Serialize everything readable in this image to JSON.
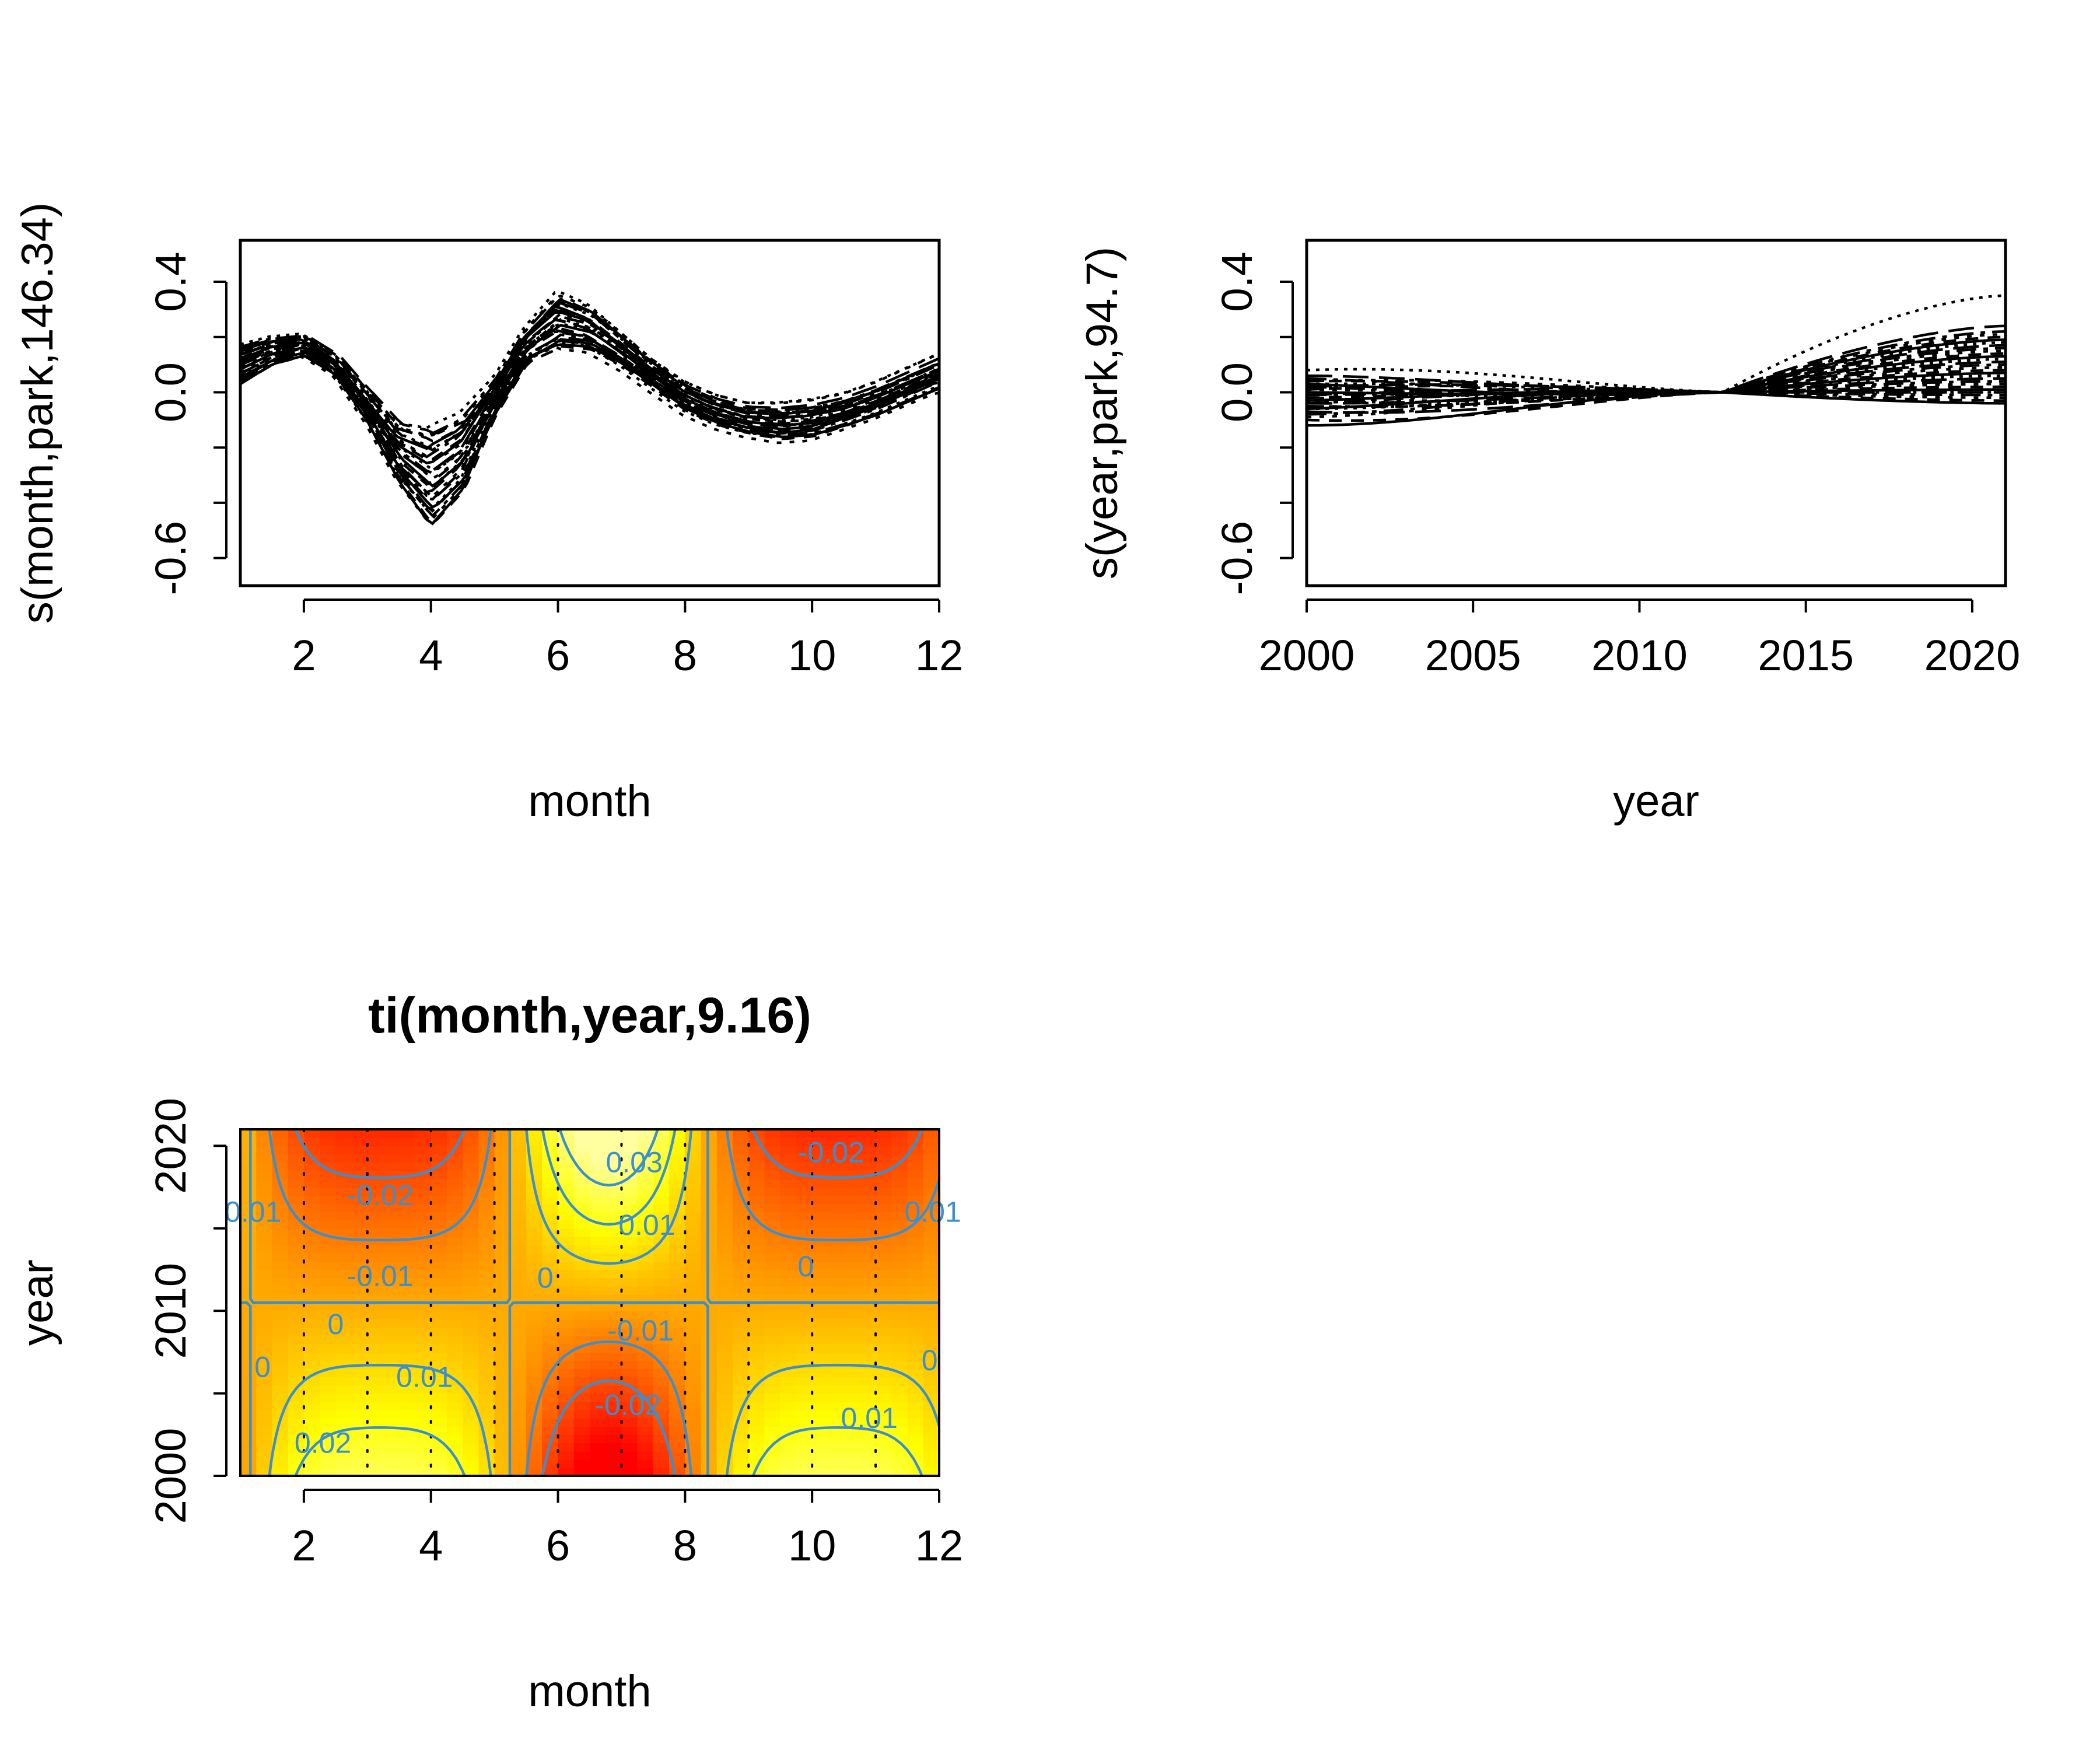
{
  "colors": {
    "axis": "#000000",
    "smooth_lines": "#000000",
    "contour": "#3a8fd0",
    "heat_low": "#ff0000",
    "heat_high": "#ffffa0",
    "grid_dots": "#000000"
  },
  "chart_data": [
    {
      "id": "month-smooth",
      "type": "line",
      "title": "",
      "xlabel": "month",
      "ylabel": "s(month,park,146.34)",
      "xlim": [
        1,
        12
      ],
      "ylim": [
        -0.7,
        0.55
      ],
      "xticks": [
        2,
        4,
        6,
        8,
        10,
        12
      ],
      "yticks": [
        -0.6,
        -0.4,
        -0.2,
        0.0,
        0.2,
        0.4
      ],
      "ytick_labels": [
        "-0.6",
        "",
        "",
        "0.0",
        "",
        "0.4"
      ],
      "series_count": 30,
      "mean_curve": {
        "x": [
          1,
          1.5,
          2,
          2.5,
          3,
          3.5,
          4,
          4.5,
          5,
          5.5,
          6,
          6.5,
          7,
          7.5,
          8,
          8.5,
          9,
          9.5,
          10,
          10.5,
          11,
          11.5,
          12
        ],
        "y": [
          0.1,
          0.15,
          0.17,
          0.1,
          -0.05,
          -0.22,
          -0.31,
          -0.22,
          -0.02,
          0.17,
          0.26,
          0.23,
          0.15,
          0.06,
          -0.02,
          -0.07,
          -0.1,
          -0.11,
          -0.1,
          -0.07,
          -0.03,
          0.02,
          0.07
        ]
      },
      "curve_spread": {
        "x": [
          1,
          1.5,
          2,
          2.5,
          3,
          3.5,
          4,
          4.5,
          5,
          5.5,
          6,
          6.5,
          7,
          7.5,
          8,
          8.5,
          9,
          9.5,
          10,
          10.5,
          11,
          11.5,
          12
        ],
        "y": [
          0.07,
          0.05,
          0.04,
          0.04,
          0.06,
          0.11,
          0.18,
          0.14,
          0.06,
          0.06,
          0.1,
          0.08,
          0.06,
          0.05,
          0.05,
          0.05,
          0.05,
          0.06,
          0.06,
          0.05,
          0.05,
          0.05,
          0.05
        ]
      },
      "legend": "none",
      "grid": false
    },
    {
      "id": "year-smooth",
      "type": "line",
      "title": "",
      "xlabel": "year",
      "ylabel": "s(year,park,94.7)",
      "xlim": [
        2000,
        2021
      ],
      "ylim": [
        -0.7,
        0.55
      ],
      "xticks": [
        2000,
        2005,
        2010,
        2015,
        2020
      ],
      "yticks": [
        -0.6,
        -0.4,
        -0.2,
        0.0,
        0.2,
        0.4
      ],
      "ytick_labels": [
        "-0.6",
        "",
        "",
        "0.0",
        "",
        "0.4"
      ],
      "series_count": 30,
      "curve_family": {
        "pivot_year": 2012.5,
        "start_values_2000": [
          -0.12,
          -0.1,
          -0.09,
          -0.08,
          -0.07,
          -0.06,
          -0.06,
          -0.05,
          -0.05,
          -0.04,
          -0.04,
          -0.03,
          -0.03,
          -0.02,
          -0.02,
          -0.01,
          -0.01,
          0.0,
          0.0,
          0.01,
          0.01,
          0.02,
          0.02,
          0.03,
          0.03,
          0.04,
          0.04,
          0.05,
          0.06,
          0.08
        ],
        "end_values_2021": [
          -0.04,
          -0.03,
          -0.02,
          -0.01,
          0.0,
          0.0,
          0.01,
          0.02,
          0.03,
          0.04,
          0.05,
          0.06,
          0.07,
          0.08,
          0.09,
          0.1,
          0.11,
          0.12,
          0.13,
          0.14,
          0.15,
          0.16,
          0.17,
          0.18,
          0.19,
          0.2,
          0.21,
          0.22,
          0.24,
          0.35
        ]
      },
      "legend": "none",
      "grid": false
    },
    {
      "id": "month-year-interaction",
      "type": "heatmap",
      "title": "ti(month,year,9.16)",
      "xlabel": "month",
      "ylabel": "year",
      "xlim": [
        1,
        12
      ],
      "ylim": [
        2000,
        2021
      ],
      "xticks": [
        2,
        4,
        6,
        8,
        10,
        12
      ],
      "yticks": [
        2000,
        2005,
        2010,
        2015,
        2020
      ],
      "ytick_labels": [
        "2000",
        "",
        "2010",
        "",
        "2020"
      ],
      "surface": {
        "month_pattern": "cos(2*pi*(month-3.2)/7.2) - 0.23*cos(2*pi*(month-3.2)/3.6)",
        "year_pattern": "(year-2010.5)/10.5",
        "scale": -0.036
      },
      "contour_levels": [
        -0.02,
        -0.01,
        0,
        0.01,
        0.02,
        0.03
      ],
      "contour_labels": [
        {
          "text": "-0.02",
          "x": 3.2,
          "y": 2017
        },
        {
          "text": "-0.01",
          "x": 3.2,
          "y": 2012.1
        },
        {
          "text": "0",
          "x": 2.5,
          "y": 2009.2
        },
        {
          "text": "0",
          "x": 1.35,
          "y": 2006.6
        },
        {
          "text": "0.01",
          "x": 1.2,
          "y": 2016
        },
        {
          "text": "0.01",
          "x": 3.9,
          "y": 2006
        },
        {
          "text": "0.02",
          "x": 2.3,
          "y": 2002
        },
        {
          "text": "0.03",
          "x": 7.2,
          "y": 2019
        },
        {
          "text": "0.01",
          "x": 7.4,
          "y": 2015.2
        },
        {
          "text": "0",
          "x": 5.8,
          "y": 2012
        },
        {
          "text": "-0.01",
          "x": 7.3,
          "y": 2008.8
        },
        {
          "text": "-0.02",
          "x": 7.1,
          "y": 2004.3
        },
        {
          "text": "-0.02",
          "x": 10.3,
          "y": 2019.6
        },
        {
          "text": "0",
          "x": 9.9,
          "y": 2012.7
        },
        {
          "text": "0.01",
          "x": 10.9,
          "y": 2003.5
        },
        {
          "text": "0.01",
          "x": 11.9,
          "y": 2016
        },
        {
          "text": "0",
          "x": 11.85,
          "y": 2007
        }
      ],
      "dotted_verticals": [
        2,
        3,
        4,
        5,
        6,
        7,
        8,
        9,
        10,
        11
      ],
      "legend": "none",
      "grid": false
    }
  ]
}
